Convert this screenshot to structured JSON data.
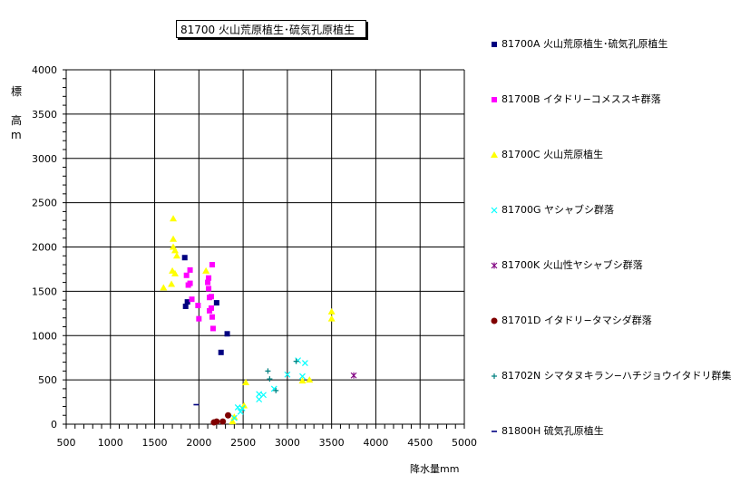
{
  "title": "81700 火山荒原植生･硫気孔原植生",
  "ylabel": [
    "標",
    "高",
    "m"
  ],
  "xlabel": "降水量mm",
  "chart_data": {
    "type": "scatter",
    "xlim": [
      500,
      5000
    ],
    "ylim": [
      0,
      4000
    ],
    "xticks": [
      500,
      1000,
      1500,
      2000,
      2500,
      3000,
      3500,
      4000,
      4500,
      5000
    ],
    "yticks": [
      0,
      500,
      1000,
      1500,
      2000,
      2500,
      3000,
      3500,
      4000
    ],
    "grid": true,
    "legend_position": "right",
    "series": [
      {
        "name": "81700A 火山荒原植生･硫気孔原植生",
        "marker": "square",
        "color": "#000080",
        "points": [
          [
            1840,
            1880
          ],
          [
            1850,
            1330
          ],
          [
            1870,
            1380
          ],
          [
            2200,
            1370
          ],
          [
            2320,
            1020
          ],
          [
            2250,
            810
          ]
        ]
      },
      {
        "name": "81700B イタドリ−コメススキ群落",
        "marker": "square",
        "color": "#ff00ff",
        "points": [
          [
            1860,
            1680
          ],
          [
            1900,
            1740
          ],
          [
            1880,
            1570
          ],
          [
            1900,
            1590
          ],
          [
            1920,
            1410
          ],
          [
            1990,
            1340
          ],
          [
            2000,
            1190
          ],
          [
            2100,
            1600
          ],
          [
            2110,
            1650
          ],
          [
            2110,
            1530
          ],
          [
            2120,
            1430
          ],
          [
            2140,
            1440
          ],
          [
            2150,
            1800
          ],
          [
            2140,
            1310
          ],
          [
            2120,
            1280
          ],
          [
            2150,
            1210
          ],
          [
            2160,
            1080
          ]
        ]
      },
      {
        "name": "81700C 火山荒原植生",
        "marker": "triangle",
        "color": "#ffff00",
        "points": [
          [
            1710,
            2320
          ],
          [
            1710,
            2090
          ],
          [
            1710,
            2000
          ],
          [
            1730,
            1960
          ],
          [
            1750,
            1900
          ],
          [
            1700,
            1730
          ],
          [
            1730,
            1700
          ],
          [
            1600,
            1540
          ],
          [
            1690,
            1580
          ],
          [
            2080,
            1730
          ],
          [
            3500,
            1270
          ],
          [
            3500,
            1190
          ],
          [
            2510,
            210
          ],
          [
            2530,
            470
          ],
          [
            2400,
            80
          ],
          [
            2380,
            30
          ],
          [
            3170,
            490
          ],
          [
            3250,
            500
          ]
        ]
      },
      {
        "name": "81700G ヤシャブシ群落",
        "marker": "x",
        "color": "#00ffff",
        "points": [
          [
            2400,
            70
          ],
          [
            2440,
            190
          ],
          [
            2470,
            140
          ],
          [
            2490,
            180
          ],
          [
            2680,
            340
          ],
          [
            2680,
            280
          ],
          [
            2730,
            330
          ],
          [
            2850,
            400
          ],
          [
            3000,
            560
          ],
          [
            3120,
            720
          ],
          [
            3200,
            690
          ],
          [
            3170,
            540
          ]
        ]
      },
      {
        "name": "81700K 火山性ヤシャブシ群落",
        "marker": "star",
        "color": "#800080",
        "points": [
          [
            3750,
            550
          ]
        ]
      },
      {
        "name": "81701D イタドリ−タマシダ群落",
        "marker": "circle",
        "color": "#800000",
        "points": [
          [
            2170,
            20
          ],
          [
            2200,
            30
          ],
          [
            2270,
            30
          ],
          [
            2330,
            100
          ]
        ]
      },
      {
        "name": "81702N シマタヌキラン−ハチジョウイタドリ群集",
        "marker": "plus",
        "color": "#008080",
        "points": [
          [
            2780,
            600
          ],
          [
            2800,
            510
          ],
          [
            2870,
            380
          ],
          [
            3100,
            710
          ]
        ]
      },
      {
        "name": "81800H 硫気孔原植生",
        "marker": "dash",
        "color": "#000080",
        "points": [
          [
            1970,
            220
          ]
        ]
      }
    ]
  }
}
